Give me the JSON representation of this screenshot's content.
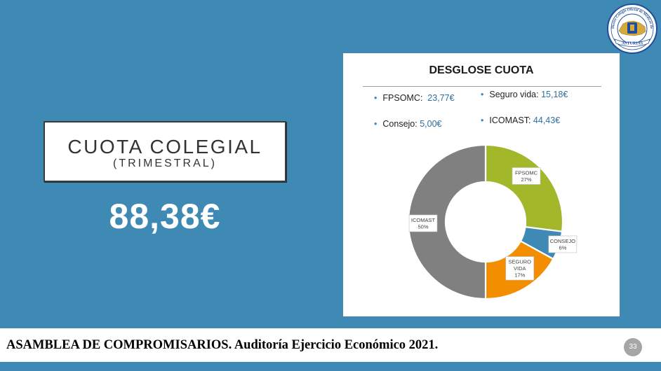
{
  "slide": {
    "title": "CUOTA COLEGIAL",
    "subtitle": "(TRIMESTRAL)",
    "amount": "88,38€",
    "page_number": "33"
  },
  "logo": {
    "name": "Ilustre Colegio Oficial de Médicos de Asturias seal",
    "arc_text": "Ilustre Colegio Oficial de Médicos de",
    "banner_text": "ASTURIAS"
  },
  "breakdown": {
    "title": "DESGLOSE CUOTA",
    "items": [
      {
        "label": "FPSOMC:",
        "value": "23,77€"
      },
      {
        "label": "Seguro vida:",
        "value": "15,18€"
      },
      {
        "label": "Consejo:",
        "value": "5,00€"
      },
      {
        "label": "ICOMAST:",
        "value": "44,43€"
      }
    ]
  },
  "chart_data": {
    "type": "pie",
    "title": "",
    "donut": true,
    "slices": [
      {
        "label": "FPSOMC",
        "value": 27,
        "display": "27%",
        "color": "#a2b729"
      },
      {
        "label": "CONSEJO",
        "value": 6,
        "display": "6%",
        "color": "#3e8ab4"
      },
      {
        "label": "SEGURO VIDA",
        "label_lines": [
          "SEGURO",
          "VIDA"
        ],
        "value": 17,
        "display": "17%",
        "color": "#f28e00"
      },
      {
        "label": "ICOMAST",
        "value": 50,
        "display": "50%",
        "color": "#808080"
      }
    ]
  },
  "footer": {
    "text": "ASAMBLEA DE COMPROMISARIOS. Auditoría Ejercicio Económico 2021."
  },
  "colors": {
    "background": "#3e8ab4",
    "accent_text": "#2e6fa0",
    "logo_blue": "#1f4e9c",
    "logo_gold": "#d6a93c"
  }
}
